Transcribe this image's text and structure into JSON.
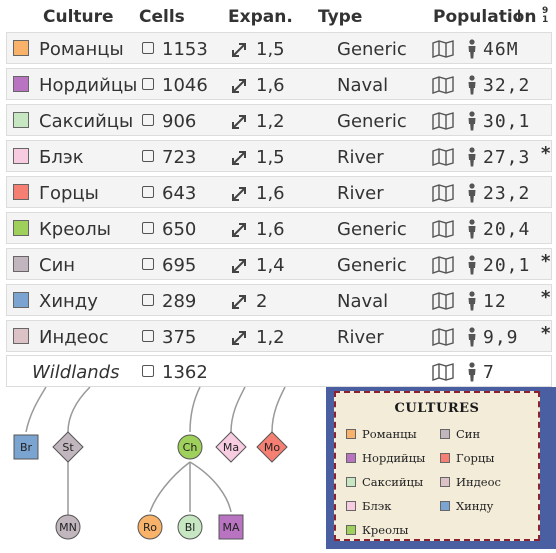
{
  "header": {
    "culture": "Culture",
    "cells": "Cells",
    "expan": "Expan.",
    "type": "Type",
    "population": "Population",
    "sort_arrow": "↓",
    "sort_badge": "9\n1"
  },
  "rows": [
    {
      "name": "Романцы",
      "color": "#f8b26a",
      "cells": "1153",
      "expan": "1,5",
      "type": "Generic",
      "pop": "46",
      "pop_suffix": "M",
      "star": ""
    },
    {
      "name": "Нордийцы",
      "color": "#b873c1",
      "cells": "1046",
      "expan": "1,6",
      "type": "Naval",
      "pop": "32,2",
      "pop_suffix": "",
      "star": ""
    },
    {
      "name": "Саксийцы",
      "color": "#c6e7c1",
      "cells": "906",
      "expan": "1,2",
      "type": "Generic",
      "pop": "30,1",
      "pop_suffix": "",
      "star": ""
    },
    {
      "name": "Блэк",
      "color": "#f7cbe0",
      "cells": "723",
      "expan": "1,5",
      "type": "River",
      "pop": "27,3",
      "pop_suffix": "",
      "star": "*"
    },
    {
      "name": "Горцы",
      "color": "#f47f72",
      "cells": "643",
      "expan": "1,6",
      "type": "River",
      "pop": "23,2",
      "pop_suffix": "",
      "star": ""
    },
    {
      "name": "Креолы",
      "color": "#9ed05b",
      "cells": "650",
      "expan": "1,6",
      "type": "Generic",
      "pop": "20,4",
      "pop_suffix": "",
      "star": ""
    },
    {
      "name": "Син",
      "color": "#c1b6bd",
      "cells": "695",
      "expan": "1,4",
      "type": "Generic",
      "pop": "20,1",
      "pop_suffix": "",
      "star": "*"
    },
    {
      "name": "Хинду",
      "color": "#7ba4d0",
      "cells": "289",
      "expan": "2",
      "type": "Naval",
      "pop": "12",
      "pop_suffix": "",
      "star": "*"
    },
    {
      "name": "Индеос",
      "color": "#dcc1c6",
      "cells": "375",
      "expan": "1,2",
      "type": "River",
      "pop": "9,9",
      "pop_suffix": "",
      "star": "*"
    }
  ],
  "wildlands": {
    "name": "Wildlands",
    "cells": "1362",
    "pop": "7"
  },
  "tree": {
    "nodes": [
      {
        "label": "Br",
        "color": "#7ba4d0",
        "shape": "square"
      },
      {
        "label": "St",
        "color": "#c1b6bd",
        "shape": "diamond"
      },
      {
        "label": "MN",
        "color": "#c1b6bd",
        "shape": "circle"
      },
      {
        "label": "Ch",
        "color": "#9ed05b",
        "shape": "circle"
      },
      {
        "label": "Ma",
        "color": "#f7cbe0",
        "shape": "diamond"
      },
      {
        "label": "Mo",
        "color": "#f47f72",
        "shape": "diamond"
      },
      {
        "label": "Ro",
        "color": "#f8b26a",
        "shape": "circle"
      },
      {
        "label": "Bl",
        "color": "#c6e7c1",
        "shape": "circle"
      },
      {
        "label": "MA",
        "color": "#b873c1",
        "shape": "square"
      }
    ]
  },
  "legend": {
    "title": "Cultures",
    "items": [
      {
        "label": "Романцы",
        "color": "#f8b26a"
      },
      {
        "label": "Син",
        "color": "#c1b6bd"
      },
      {
        "label": "Нордийцы",
        "color": "#b873c1"
      },
      {
        "label": "Горцы",
        "color": "#f47f72"
      },
      {
        "label": "Саксийцы",
        "color": "#c6e7c1"
      },
      {
        "label": "Индеос",
        "color": "#dcc1c6"
      },
      {
        "label": "Блэк",
        "color": "#f7cbe0"
      },
      {
        "label": "Хинду",
        "color": "#7ba4d0"
      },
      {
        "label": "Креолы",
        "color": "#9ed05b"
      }
    ]
  }
}
